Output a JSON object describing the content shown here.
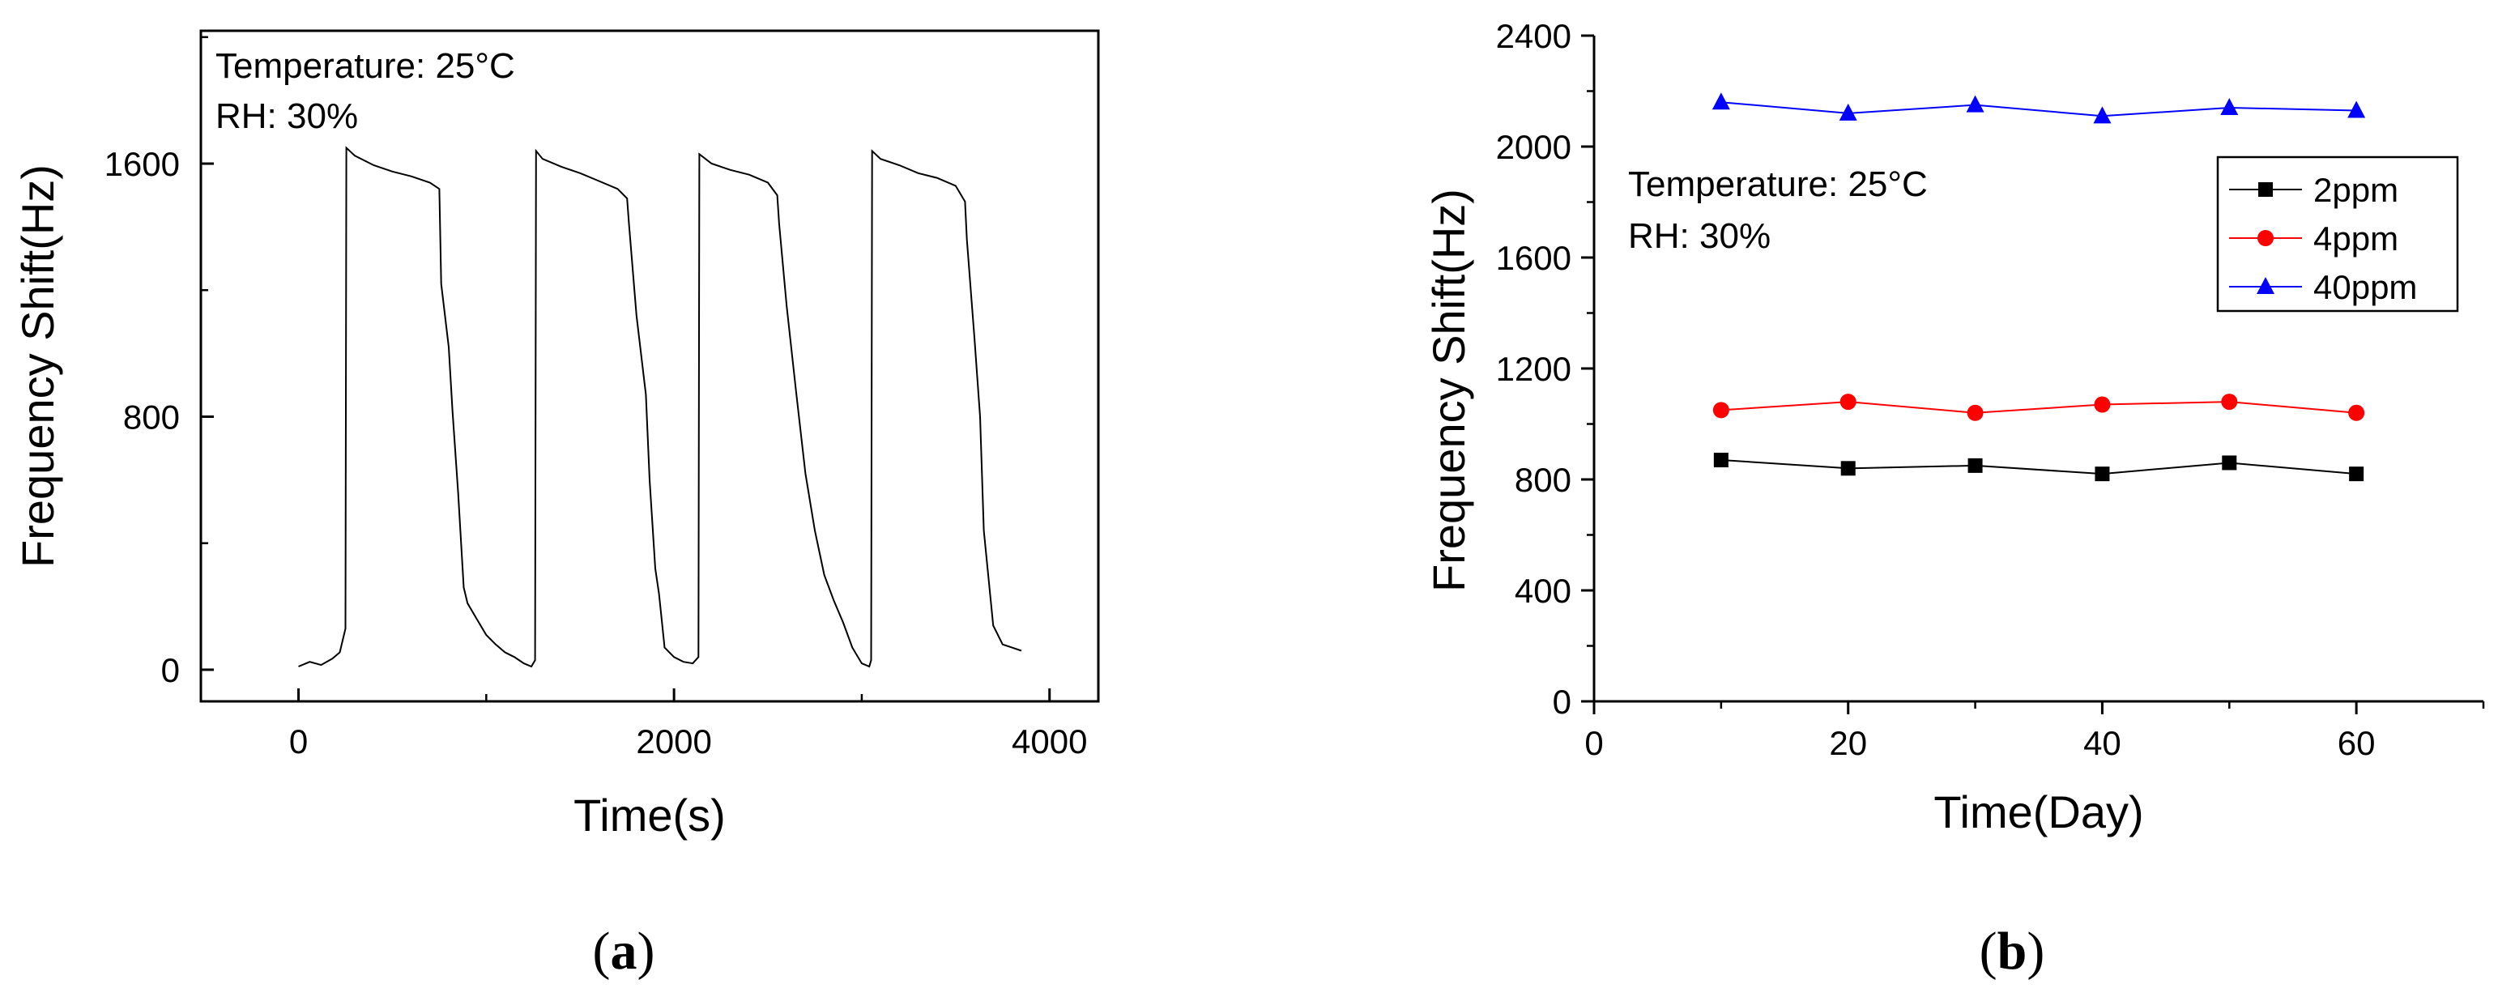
{
  "chart_data": [
    {
      "type": "line",
      "panel_label": "a",
      "xlabel": "Time(s)",
      "ylabel": "Frequency Shift(Hz)",
      "xlim": [
        -520,
        4260
      ],
      "ylim": [
        -100,
        2020
      ],
      "xticks": [
        0,
        2000,
        4000
      ],
      "yticks": [
        0,
        800,
        1600
      ],
      "annotations": [
        "Temperature: 25°C",
        "RH: 30%"
      ],
      "series": [
        {
          "color": "#000000",
          "x": [
            0,
            60,
            120,
            180,
            220,
            250,
            255,
            300,
            400,
            500,
            600,
            700,
            750,
            760,
            800,
            820,
            850,
            880,
            900,
            950,
            1000,
            1050,
            1100,
            1150,
            1200,
            1240,
            1260,
            1265,
            1300,
            1400,
            1500,
            1600,
            1700,
            1750,
            1760,
            1800,
            1850,
            1870,
            1900,
            1920,
            1950,
            2000,
            2050,
            2100,
            2130,
            2135,
            2200,
            2300,
            2400,
            2500,
            2550,
            2560,
            2600,
            2650,
            2700,
            2750,
            2800,
            2850,
            2900,
            2950,
            3000,
            3040,
            3050,
            3055,
            3100,
            3200,
            3300,
            3400,
            3500,
            3550,
            3560,
            3600,
            3630,
            3650,
            3700,
            3750,
            3800,
            3850
          ],
          "y": [
            10,
            25,
            15,
            35,
            55,
            130,
            1650,
            1625,
            1595,
            1575,
            1560,
            1540,
            1520,
            1220,
            1020,
            820,
            560,
            260,
            210,
            160,
            110,
            80,
            55,
            40,
            20,
            10,
            30,
            1640,
            1615,
            1590,
            1570,
            1545,
            1520,
            1490,
            1410,
            1120,
            870,
            600,
            320,
            240,
            70,
            40,
            25,
            20,
            40,
            1630,
            1600,
            1580,
            1565,
            1540,
            1500,
            1410,
            1150,
            880,
            620,
            440,
            300,
            220,
            150,
            70,
            20,
            10,
            30,
            1640,
            1615,
            1595,
            1570,
            1555,
            1530,
            1480,
            1360,
            1050,
            800,
            440,
            140,
            80,
            70,
            60
          ]
        }
      ]
    },
    {
      "type": "line",
      "panel_label": "b",
      "xlabel": "Time(Day)",
      "ylabel": "Frequency Shift(Hz)",
      "xlim": [
        0,
        70
      ],
      "ylim": [
        0,
        2400
      ],
      "xticks": [
        0,
        20,
        40,
        60
      ],
      "yticks": [
        0,
        400,
        800,
        1200,
        1600,
        2000,
        2400
      ],
      "annotations": [
        "Temperature: 25°C",
        "RH: 30%"
      ],
      "legend_position": "top-right",
      "x": [
        10,
        20,
        30,
        40,
        50,
        60
      ],
      "series": [
        {
          "name": "2ppm",
          "color": "#000000",
          "marker": "square",
          "values": [
            870,
            840,
            850,
            820,
            860,
            820
          ]
        },
        {
          "name": "4ppm",
          "color": "#ff0000",
          "marker": "circle",
          "values": [
            1050,
            1080,
            1040,
            1070,
            1080,
            1040
          ]
        },
        {
          "name": "40ppm",
          "color": "#0000ff",
          "marker": "triangle",
          "values": [
            2160,
            2120,
            2150,
            2110,
            2140,
            2130
          ]
        }
      ]
    }
  ]
}
